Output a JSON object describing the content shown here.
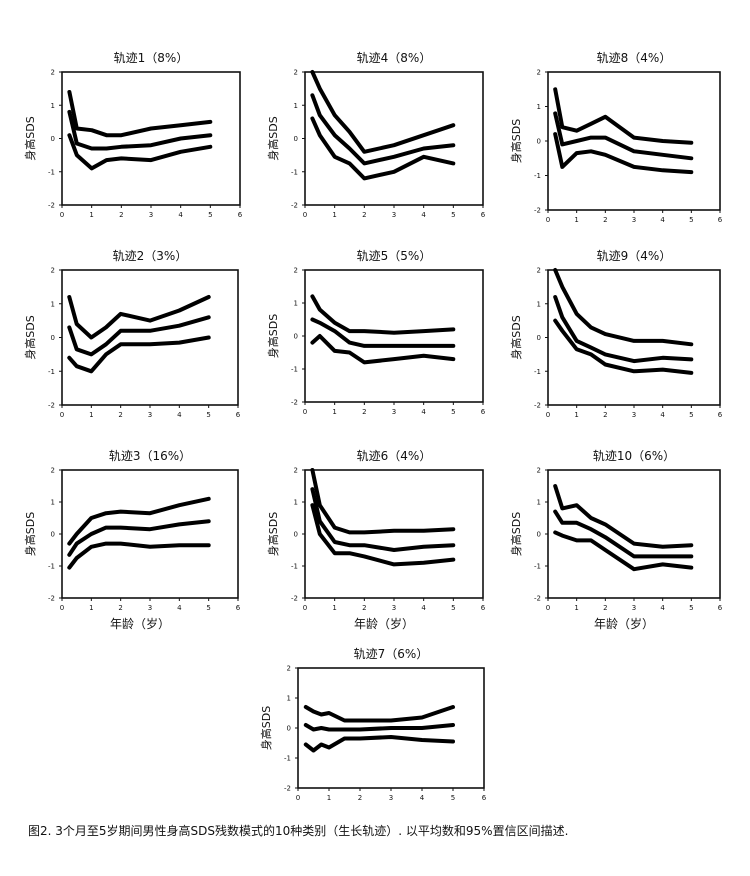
{
  "caption": "图2. 3个月至5岁期间男性身高SDS残数模式的10种类别（生长轨迹）. 以平均数和95%置信区间描述.",
  "chart_data": [
    {
      "type": "line",
      "title": "轨迹1（8%）",
      "ylabel": "身高SDS",
      "xlabel": "",
      "xlim": [
        0,
        6
      ],
      "ylim": [
        -2,
        2
      ],
      "xticks": [
        "0",
        "1",
        "2",
        "3",
        "4",
        "5",
        "6"
      ],
      "yticks": [
        "2",
        "1",
        "0",
        "-1",
        "-2"
      ],
      "x": [
        0.25,
        0.5,
        1,
        1.5,
        2,
        3,
        4,
        5
      ],
      "series": [
        {
          "values": [
            1.4,
            0.3,
            0.25,
            0.1,
            0.1,
            0.3,
            0.4,
            0.5
          ]
        },
        {
          "values": [
            0.8,
            -0.15,
            -0.3,
            -0.3,
            -0.25,
            -0.2,
            0,
            0.1
          ]
        },
        {
          "values": [
            0.1,
            -0.5,
            -0.9,
            -0.65,
            -0.6,
            -0.65,
            -0.4,
            -0.25
          ]
        }
      ]
    },
    {
      "type": "line",
      "title": "轨迹4（8%）",
      "ylabel": "身高SDS",
      "xlabel": "",
      "xlim": [
        0,
        6
      ],
      "ylim": [
        -2,
        2
      ],
      "xticks": [
        "0",
        "1",
        "2",
        "3",
        "4",
        "5",
        "6"
      ],
      "yticks": [
        "2",
        "1",
        "0",
        "-1",
        "-2"
      ],
      "x": [
        0.25,
        0.5,
        1,
        1.5,
        2,
        3,
        4,
        5
      ],
      "series": [
        {
          "values": [
            2.0,
            1.5,
            0.7,
            0.2,
            -0.4,
            -0.2,
            0.1,
            0.4
          ]
        },
        {
          "values": [
            1.3,
            0.7,
            0.1,
            -0.3,
            -0.75,
            -0.55,
            -0.3,
            -0.2
          ]
        },
        {
          "values": [
            0.6,
            0.1,
            -0.55,
            -0.75,
            -1.2,
            -1.0,
            -0.55,
            -0.75
          ]
        }
      ]
    },
    {
      "type": "line",
      "title": "轨迹8（4%）",
      "ylabel": "身高SDS",
      "xlabel": "",
      "xlim": [
        0,
        6
      ],
      "ylim": [
        -2,
        2
      ],
      "xticks": [
        "0",
        "1",
        "2",
        "3",
        "4",
        "5",
        "6"
      ],
      "yticks": [
        "2",
        "1",
        "0",
        "-1",
        "-2"
      ],
      "x": [
        0.25,
        0.5,
        1,
        1.5,
        2,
        3,
        4,
        5
      ],
      "series": [
        {
          "values": [
            1.5,
            0.4,
            0.3,
            0.5,
            0.7,
            0.1,
            0,
            -0.05
          ]
        },
        {
          "values": [
            0.8,
            -0.1,
            0,
            0.1,
            0.1,
            -0.3,
            -0.4,
            -0.5
          ]
        },
        {
          "values": [
            0.2,
            -0.75,
            -0.35,
            -0.3,
            -0.4,
            -0.75,
            -0.85,
            -0.9
          ]
        }
      ]
    },
    {
      "type": "line",
      "title": "轨迹2（3%）",
      "ylabel": "身高SDS",
      "xlabel": "",
      "xlim": [
        0,
        6
      ],
      "ylim": [
        -2,
        2
      ],
      "xticks": [
        "0",
        "1",
        "2",
        "3",
        "4",
        "5",
        "6"
      ],
      "yticks": [
        "2",
        "1",
        "0",
        "-1",
        "-2"
      ],
      "x": [
        0.25,
        0.5,
        1,
        1.5,
        2,
        3,
        4,
        5
      ],
      "series": [
        {
          "values": [
            1.2,
            0.4,
            0,
            0.3,
            0.7,
            0.5,
            0.8,
            1.2
          ]
        },
        {
          "values": [
            0.3,
            -0.35,
            -0.5,
            -0.2,
            0.2,
            0.2,
            0.35,
            0.6
          ]
        },
        {
          "values": [
            -0.6,
            -0.85,
            -1.0,
            -0.5,
            -0.2,
            -0.2,
            -0.15,
            0
          ]
        }
      ]
    },
    {
      "type": "line",
      "title": "轨迹5（5%）",
      "ylabel": "身高SDS",
      "xlabel": "",
      "xlim": [
        0,
        6
      ],
      "ylim": [
        -2,
        2
      ],
      "xticks": [
        "0",
        "1",
        "2",
        "3",
        "4",
        "5",
        "6"
      ],
      "yticks": [
        "2",
        "1",
        "0",
        "-1",
        "-2"
      ],
      "x": [
        0.25,
        0.5,
        1,
        1.5,
        2,
        3,
        4,
        5
      ],
      "series": [
        {
          "values": [
            1.2,
            0.8,
            0.4,
            0.15,
            0.15,
            0.1,
            0.15,
            0.2
          ]
        },
        {
          "values": [
            0.5,
            0.4,
            0.15,
            -0.2,
            -0.3,
            -0.3,
            -0.3,
            -0.3
          ]
        },
        {
          "values": [
            -0.2,
            0,
            -0.45,
            -0.5,
            -0.8,
            -0.7,
            -0.6,
            -0.7
          ]
        }
      ]
    },
    {
      "type": "line",
      "title": "轨迹9（4%）",
      "ylabel": "身高SDS",
      "xlabel": "",
      "xlim": [
        0,
        6
      ],
      "ylim": [
        -2,
        2
      ],
      "xticks": [
        "0",
        "1",
        "2",
        "3",
        "4",
        "5",
        "6"
      ],
      "yticks": [
        "2",
        "1",
        "0",
        "-1",
        "-2"
      ],
      "x": [
        0.25,
        0.5,
        1,
        1.5,
        2,
        3,
        4,
        5
      ],
      "series": [
        {
          "values": [
            2.0,
            1.5,
            0.7,
            0.3,
            0.1,
            -0.1,
            -0.1,
            -0.2
          ]
        },
        {
          "values": [
            1.2,
            0.6,
            -0.1,
            -0.3,
            -0.5,
            -0.7,
            -0.6,
            -0.65
          ]
        },
        {
          "values": [
            0.5,
            0.2,
            -0.35,
            -0.5,
            -0.8,
            -1.0,
            -0.95,
            -1.05
          ]
        }
      ]
    },
    {
      "type": "line",
      "title": "轨迹3（16%）",
      "ylabel": "身高SDS",
      "xlabel": "年龄（岁）",
      "xlim": [
        0,
        6
      ],
      "ylim": [
        -2,
        2
      ],
      "xticks": [
        "0",
        "1",
        "2",
        "3",
        "4",
        "5",
        "6"
      ],
      "yticks": [
        "2",
        "1",
        "0",
        "-1",
        "-2"
      ],
      "x": [
        0.25,
        0.5,
        1,
        1.5,
        2,
        3,
        4,
        5
      ],
      "series": [
        {
          "values": [
            -0.3,
            0,
            0.5,
            0.65,
            0.7,
            0.65,
            0.9,
            1.1
          ]
        },
        {
          "values": [
            -0.65,
            -0.3,
            0,
            0.2,
            0.2,
            0.15,
            0.3,
            0.4
          ]
        },
        {
          "values": [
            -1.05,
            -0.75,
            -0.4,
            -0.3,
            -0.3,
            -0.4,
            -0.35,
            -0.35
          ]
        }
      ]
    },
    {
      "type": "line",
      "title": "轨迹6（4%）",
      "ylabel": "身高SDS",
      "xlabel": "年龄（岁）",
      "xlim": [
        0,
        6
      ],
      "ylim": [
        -2,
        2
      ],
      "xticks": [
        "0",
        "1",
        "2",
        "3",
        "4",
        "5",
        "6"
      ],
      "yticks": [
        "2",
        "1",
        "0",
        "-1",
        "-2"
      ],
      "x": [
        0.25,
        0.5,
        1,
        1.5,
        2,
        3,
        4,
        5
      ],
      "series": [
        {
          "values": [
            2.0,
            0.9,
            0.2,
            0.05,
            0.05,
            0.1,
            0.1,
            0.15
          ]
        },
        {
          "values": [
            1.4,
            0.4,
            -0.25,
            -0.35,
            -0.35,
            -0.5,
            -0.4,
            -0.35
          ]
        },
        {
          "values": [
            0.9,
            0,
            -0.6,
            -0.6,
            -0.7,
            -0.95,
            -0.9,
            -0.8
          ]
        }
      ]
    },
    {
      "type": "line",
      "title": "轨迹10（6%）",
      "ylabel": "身高SDS",
      "xlabel": "年龄（岁）",
      "xlim": [
        0,
        6
      ],
      "ylim": [
        -2,
        2
      ],
      "xticks": [
        "0",
        "1",
        "2",
        "3",
        "4",
        "5",
        "6"
      ],
      "yticks": [
        "2",
        "1",
        "0",
        "-1",
        "-2"
      ],
      "x": [
        0.25,
        0.5,
        1,
        1.5,
        2,
        3,
        4,
        5
      ],
      "series": [
        {
          "values": [
            1.5,
            0.8,
            0.9,
            0.5,
            0.3,
            -0.3,
            -0.4,
            -0.35
          ]
        },
        {
          "values": [
            0.7,
            0.35,
            0.35,
            0.15,
            -0.1,
            -0.7,
            -0.7,
            -0.7
          ]
        },
        {
          "values": [
            0.05,
            -0.05,
            -0.2,
            -0.2,
            -0.5,
            -1.1,
            -0.95,
            -1.05
          ]
        }
      ]
    },
    {
      "type": "line",
      "title": "轨迹7（6%）",
      "ylabel": "身高SDS",
      "xlabel": "",
      "xlim": [
        0,
        6
      ],
      "ylim": [
        -2,
        2
      ],
      "xticks": [
        "0",
        "1",
        "2",
        "3",
        "4",
        "5",
        "6"
      ],
      "yticks": [
        "2",
        "1",
        "0",
        "-1",
        "-2"
      ],
      "x": [
        0.25,
        0.5,
        0.75,
        1,
        1.5,
        2,
        3,
        4,
        5
      ],
      "series": [
        {
          "values": [
            0.7,
            0.55,
            0.45,
            0.5,
            0.25,
            0.25,
            0.25,
            0.35,
            0.7
          ]
        },
        {
          "values": [
            0.1,
            -0.05,
            0,
            -0.05,
            -0.05,
            -0.05,
            0,
            0,
            0.1
          ]
        },
        {
          "values": [
            -0.55,
            -0.75,
            -0.55,
            -0.65,
            -0.35,
            -0.35,
            -0.3,
            -0.4,
            -0.45
          ]
        }
      ]
    }
  ]
}
